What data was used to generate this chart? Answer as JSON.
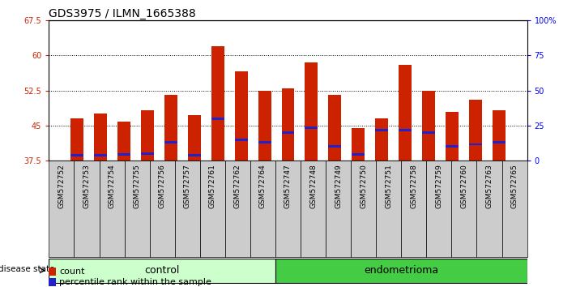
{
  "title": "GDS3975 / ILMN_1665388",
  "samples": [
    "GSM572752",
    "GSM572753",
    "GSM572754",
    "GSM572755",
    "GSM572756",
    "GSM572757",
    "GSM572761",
    "GSM572762",
    "GSM572764",
    "GSM572747",
    "GSM572748",
    "GSM572749",
    "GSM572750",
    "GSM572751",
    "GSM572758",
    "GSM572759",
    "GSM572760",
    "GSM572763",
    "GSM572765"
  ],
  "count_values": [
    46.5,
    47.5,
    45.8,
    48.2,
    51.5,
    47.2,
    62.0,
    56.5,
    52.5,
    53.0,
    58.5,
    51.5,
    44.5,
    46.5,
    58.0,
    52.5,
    48.0,
    50.5,
    48.2
  ],
  "percentile_values": [
    38.7,
    38.7,
    38.9,
    39.0,
    41.5,
    38.7,
    46.5,
    42.0,
    41.5,
    43.5,
    44.5,
    40.5,
    38.9,
    44.0,
    44.0,
    43.5,
    40.5,
    41.0,
    41.5
  ],
  "groups": [
    "control",
    "control",
    "control",
    "control",
    "control",
    "control",
    "control",
    "control",
    "control",
    "endometrioma",
    "endometrioma",
    "endometrioma",
    "endometrioma",
    "endometrioma",
    "endometrioma",
    "endometrioma",
    "endometrioma",
    "endometrioma",
    "endometrioma"
  ],
  "ymin": 37.5,
  "ymax": 67.5,
  "yticks": [
    37.5,
    45.0,
    52.5,
    60.0,
    67.5
  ],
  "right_yticks": [
    0,
    25,
    50,
    75,
    100
  ],
  "bar_color": "#cc2200",
  "marker_color": "#2222cc",
  "control_color": "#ccffcc",
  "endometrioma_color": "#44cc44",
  "label_background": "#cccccc",
  "grid_color": "#000000",
  "bar_bottom": 37.5,
  "bar_width": 0.55,
  "title_fontsize": 10,
  "tick_fontsize": 7,
  "label_fontsize": 8,
  "legend_fontsize": 8,
  "group_label_fontsize": 9,
  "n_control": 9,
  "n_endo": 10
}
